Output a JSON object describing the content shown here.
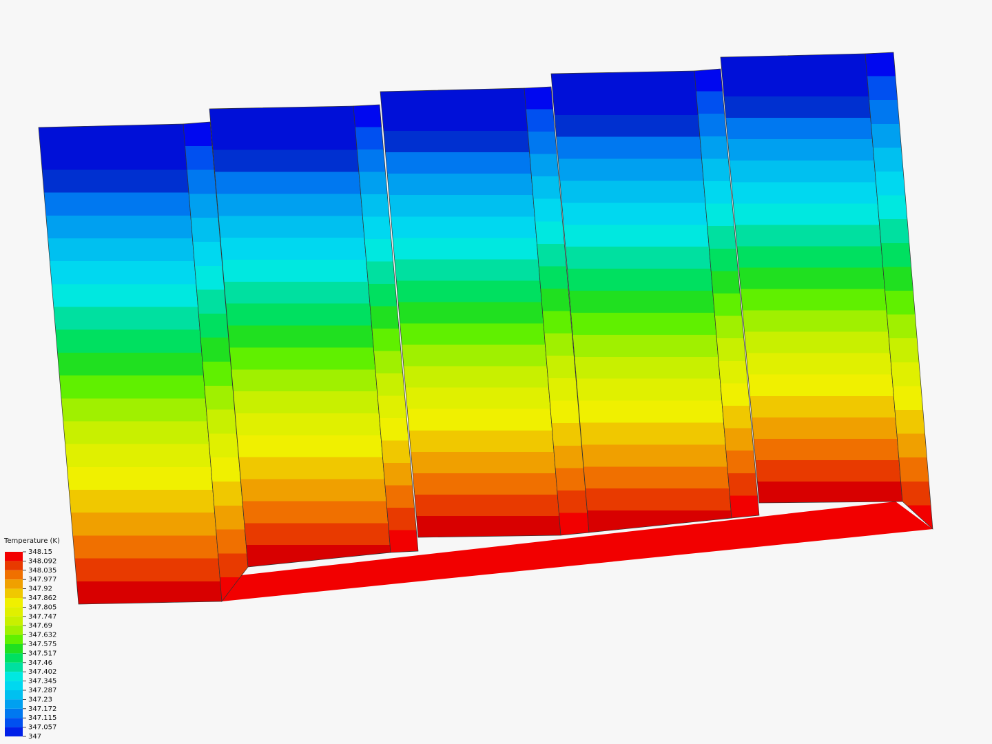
{
  "legend": {
    "title": "Temperature (K)",
    "labels": [
      "348.15",
      "348.092",
      "348.035",
      "347.977",
      "347.92",
      "347.862",
      "347.805",
      "347.747",
      "347.69",
      "347.632",
      "347.575",
      "347.517",
      "347.46",
      "347.402",
      "347.345",
      "347.287",
      "347.23",
      "347.172",
      "347.115",
      "347.057",
      "347"
    ]
  }
}
